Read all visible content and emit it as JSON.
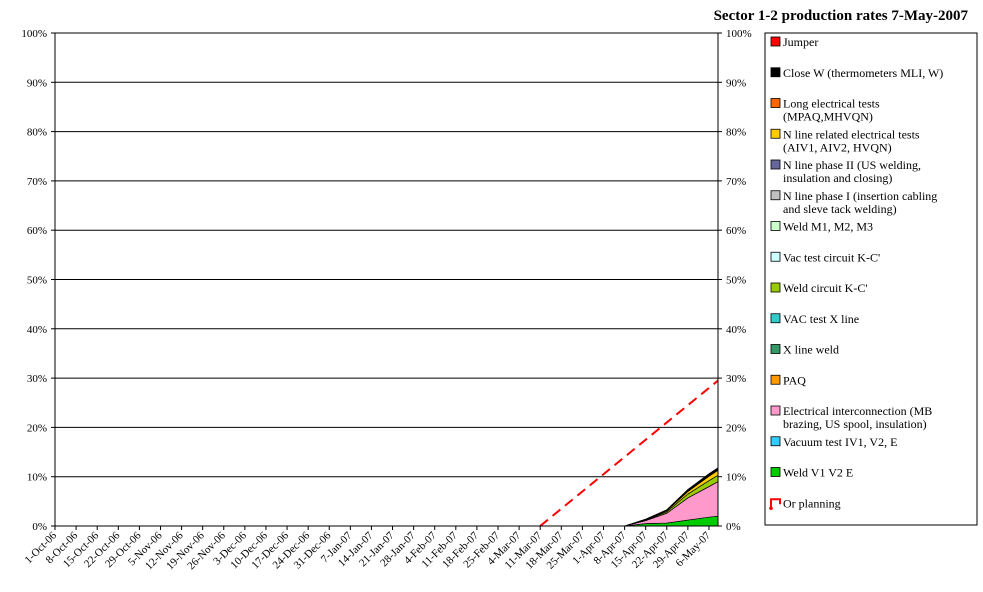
{
  "chart_data": {
    "type": "area",
    "title": "Sector 1-2 production rates 7-May-2007",
    "xlabel": "",
    "ylabel": "",
    "ylim": [
      0,
      100
    ],
    "y_ticks": [
      "0%",
      "10%",
      "20%",
      "30%",
      "40%",
      "50%",
      "60%",
      "70%",
      "80%",
      "90%",
      "100%"
    ],
    "grid": "horizontal",
    "dual_y_axis": true,
    "legend_position": "right",
    "x_ticks": [
      "1-Oct-06",
      "8-Oct-06",
      "15-Oct-06",
      "22-Oct-06",
      "29-Oct-06",
      "5-Nov-06",
      "12-Nov-06",
      "19-Nov-06",
      "26-Nov-06",
      "3-Dec-06",
      "10-Dec-06",
      "17-Dec-06",
      "24-Dec-06",
      "31-Dec-06",
      "7-Jan-07",
      "14-Jan-07",
      "21-Jan-07",
      "28-Jan-07",
      "4-Feb-07",
      "11-Feb-07",
      "18-Feb-07",
      "25-Feb-07",
      "4-Mar-07",
      "11-Mar-07",
      "18-Mar-07",
      "25-Mar-07",
      "1-Apr-07",
      "8-Apr-07",
      "15-Apr-07",
      "22-Apr-07",
      "29-Apr-07",
      "6-May-07"
    ],
    "x": [
      "1-Apr-07",
      "8-Apr-07",
      "15-Apr-07",
      "22-Apr-07",
      "29-Apr-07",
      "6-May-07",
      "9-May-07"
    ],
    "series": [
      {
        "name": "Weld V1 V2 E",
        "color": "#00cc00",
        "values": [
          0,
          0,
          0.5,
          0.6,
          1.2,
          1.8,
          2.0
        ]
      },
      {
        "name": "Vacuum test IV1, V2, E",
        "color": "#33ccff",
        "values": [
          0,
          0,
          0,
          0,
          0,
          0,
          0
        ]
      },
      {
        "name": "Electrical interconnection (MB brazing, US spool, insulation)",
        "color": "#ff99cc",
        "values": [
          0,
          0,
          0.6,
          2.0,
          4.5,
          6.2,
          7.0
        ]
      },
      {
        "name": "PAQ",
        "color": "#ff9900",
        "values": [
          0,
          0,
          0,
          0,
          0,
          0,
          0
        ]
      },
      {
        "name": "X line weld",
        "color": "#339966",
        "values": [
          0,
          0,
          0,
          0,
          0,
          0,
          0
        ]
      },
      {
        "name": "VAC test X line",
        "color": "#33cccc",
        "values": [
          0,
          0,
          0,
          0,
          0,
          0,
          0
        ]
      },
      {
        "name": "Weld circuit K-C'",
        "color": "#99cc00",
        "values": [
          0,
          0,
          0.1,
          0.3,
          0.8,
          1.2,
          1.3
        ]
      },
      {
        "name": "Vac test circuit K-C'",
        "color": "#ccffff",
        "values": [
          0,
          0,
          0,
          0,
          0,
          0,
          0
        ]
      },
      {
        "name": "Weld M1, M2, M3",
        "color": "#ccffcc",
        "values": [
          0,
          0,
          0,
          0,
          0,
          0,
          0
        ]
      },
      {
        "name": "N line phase I (insertion cabling and sleve tack welding)",
        "color": "#c0c0c0",
        "values": [
          0,
          0,
          0,
          0,
          0,
          0,
          0
        ]
      },
      {
        "name": "N line phase II (US welding, insulation and closing)",
        "color": "#666699",
        "values": [
          0,
          0,
          0,
          0,
          0,
          0,
          0
        ]
      },
      {
        "name": "N line related electrical tests (AIV1, AIV2, HVQN)",
        "color": "#ffcc00",
        "values": [
          0,
          0,
          0.1,
          0.2,
          0.5,
          0.9,
          1.0
        ]
      },
      {
        "name": "Long electrical tests (MPAQ,MHVQN)",
        "color": "#ff6600",
        "values": [
          0,
          0,
          0,
          0,
          0,
          0,
          0
        ]
      },
      {
        "name": "Close W (thermometers MLI, W)",
        "color": "#000000",
        "values": [
          0,
          0,
          0.1,
          0.2,
          0.4,
          0.5,
          0.5
        ]
      },
      {
        "name": "Jumper",
        "color": "#ff0000",
        "values": [
          0,
          0,
          0,
          0,
          0,
          0,
          0
        ]
      }
    ],
    "planning": {
      "name": "Or planning",
      "color": "#ff0000",
      "x": [
        "11-Mar-07",
        "9-May-07"
      ],
      "values": [
        0,
        29.5
      ]
    },
    "legend_order": [
      "Jumper",
      "Close W (thermometers MLI, W)",
      "Long electrical tests (MPAQ,MHVQN)",
      "N line related electrical tests (AIV1, AIV2, HVQN)",
      "N line phase II (US welding, insulation and closing)",
      "N line phase I (insertion cabling and sleve tack welding)",
      "Weld M1, M2, M3",
      "Vac test circuit K-C'",
      "Weld circuit K-C'",
      "VAC test X line",
      "X line weld",
      "PAQ",
      "Electrical interconnection (MB brazing, US spool, insulation)",
      "Vacuum test IV1, V2, E",
      "Weld V1 V2 E",
      "Or planning"
    ],
    "legend_lines": {
      "Jumper": [
        "Jumper"
      ],
      "Close W (thermometers MLI, W)": [
        "Close W (thermometers MLI, W)"
      ],
      "Long electrical tests (MPAQ,MHVQN)": [
        "Long electrical tests",
        "(MPAQ,MHVQN)"
      ],
      "N line related electrical tests (AIV1, AIV2, HVQN)": [
        "N line related electrical tests",
        "(AIV1, AIV2, HVQN)"
      ],
      "N line phase II (US welding, insulation and closing)": [
        "N line phase II (US welding,",
        "insulation and closing)"
      ],
      "N line phase I (insertion cabling and sleve tack welding)": [
        "N line phase I (insertion cabling",
        "and sleve tack welding)"
      ],
      "Weld M1, M2, M3": [
        "Weld M1, M2, M3"
      ],
      "Vac test circuit K-C'": [
        "Vac test circuit K-C'"
      ],
      "Weld circuit K-C'": [
        "Weld circuit K-C'"
      ],
      "VAC test X line": [
        "VAC test X line"
      ],
      "X line weld": [
        "X line weld"
      ],
      "PAQ": [
        "PAQ"
      ],
      "Electrical interconnection (MB brazing, US spool, insulation)": [
        "Electrical interconnection (MB",
        "brazing, US spool, insulation)"
      ],
      "Vacuum test IV1, V2, E": [
        "Vacuum test IV1, V2, E"
      ],
      "Weld V1 V2 E": [
        "Weld V1 V2 E"
      ],
      "Or planning": [
        "Or planning"
      ]
    }
  }
}
